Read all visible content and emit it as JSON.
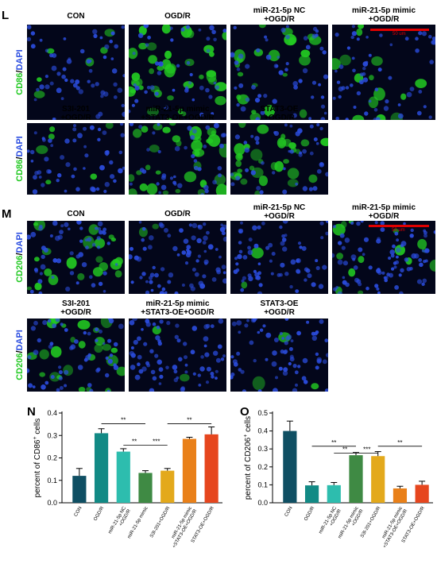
{
  "figure": {
    "panel_L": {
      "letter": "L",
      "row_label_marker": "CD86",
      "row_label_sep": "/",
      "row_label_nucleus": "DAPI",
      "scale_bar_text": "50 um",
      "row1": [
        {
          "line1": "CON",
          "line2": ""
        },
        {
          "line1": "OGD/R",
          "line2": ""
        },
        {
          "line1": "miR-21-5p NC",
          "line2": "+OGD/R"
        },
        {
          "line1": "miR-21-5p mimic",
          "line2": "+OGD/R"
        }
      ],
      "row2": [
        {
          "line1": "S3I-201",
          "line2": "+OGD/R"
        },
        {
          "line1": "miR-21-5p mimic",
          "line2": "+STAT3-OE+OGD/R"
        },
        {
          "line1": "STAT3-OE",
          "line2": "+OGD/R"
        }
      ]
    },
    "panel_M": {
      "letter": "M",
      "row_label_marker": "CD206",
      "row_label_sep": "/",
      "row_label_nucleus": "DAPI",
      "scale_bar_text": "50 um",
      "row1": [
        {
          "line1": "CON",
          "line2": ""
        },
        {
          "line1": "OGD/R",
          "line2": ""
        },
        {
          "line1": "miR-21-5p NC",
          "line2": "+OGD/R"
        },
        {
          "line1": "miR-21-5p mimic",
          "line2": "+OGD/R"
        }
      ],
      "row2": [
        {
          "line1": "S3I-201",
          "line2": "+OGD/R"
        },
        {
          "line1": "miR-21-5p mimic",
          "line2": "+STAT3-OE+OGD/R"
        },
        {
          "line1": "STAT3-OE",
          "line2": "+OGD/R"
        }
      ]
    },
    "panel_N": {
      "letter": "N"
    },
    "panel_O": {
      "letter": "O"
    },
    "colors": {
      "green": "#22c922",
      "blue": "#2b4de0",
      "scale_bar": "#e00000",
      "bars": [
        "#0f4f63",
        "#128a85",
        "#2dbdae",
        "#3f8a44",
        "#e3a91c",
        "#e98019",
        "#e6461e"
      ]
    }
  },
  "chart_data": [
    {
      "type": "bar",
      "title": "",
      "xlabel": "",
      "ylabel_prefix": "percent of CD86",
      "ylabel_sup": "+",
      "ylabel_suffix": " cells",
      "ylim": [
        0,
        0.4
      ],
      "yticks": [
        "0.0",
        "0.1",
        "0.2",
        "0.3",
        "0.4"
      ],
      "categories": [
        "CON",
        "OGD/R",
        "miR-21-5p NC +OGD/R",
        "miR-21-5p mimic +OGD/R",
        "S3I-201+OGD/R",
        "miR-21-5p mimic +STAT3-OE+OGD/R",
        "STAT3-OE+OGD/R"
      ],
      "category_lines": [
        [
          "CON"
        ],
        [
          "OGD/R"
        ],
        [
          "miR-21-5p NC",
          "+OGD/R"
        ],
        [
          "miR-21-5p mimic"
        ],
        [
          "S3I-201+OGD/R"
        ],
        [
          "miR-21-5p mimic",
          "+STAT3-OE+OGD/R"
        ],
        [
          "STAT3-OE+OGD/R"
        ]
      ],
      "values": [
        0.12,
        0.31,
        0.228,
        0.133,
        0.143,
        0.285,
        0.305
      ],
      "errors": [
        0.033,
        0.02,
        0.013,
        0.01,
        0.01,
        0.007,
        0.033
      ],
      "significance": [
        {
          "from": 1,
          "to": 3,
          "y": 0.352,
          "label": "**"
        },
        {
          "from": 2,
          "to": 3,
          "y": 0.257,
          "label": "**"
        },
        {
          "from": 3,
          "to": 4,
          "y": 0.257,
          "label": "***"
        },
        {
          "from": 4,
          "to": 6,
          "y": 0.352,
          "label": "**"
        }
      ]
    },
    {
      "type": "bar",
      "title": "",
      "xlabel": "",
      "ylabel_prefix": "percent of CD206",
      "ylabel_sup": "+",
      "ylabel_suffix": " cells",
      "ylim": [
        0,
        0.5
      ],
      "yticks": [
        "0.0",
        "0.1",
        "0.2",
        "0.3",
        "0.4",
        "0.5"
      ],
      "categories": [
        "CON",
        "OGD/R",
        "miR-21-5p NC +OGD/R",
        "miR-21-5p mimic +OGD/R",
        "S3I-201+OGD/R",
        "miR-21-5p mimic +STAT3-OE+OGD/R",
        "STAT3-OE+OGD/R"
      ],
      "category_lines": [
        [
          "CON"
        ],
        [
          "OGD/R"
        ],
        [
          "miR-21-5p NC",
          "+OGD/R"
        ],
        [
          "miR-21-5p mimic",
          "+OGD/R"
        ],
        [
          "S3I-201+OGD/R"
        ],
        [
          "miR-21-5p mimic",
          "+STAT3-OE+OGD/R"
        ],
        [
          "STAT3-OE+OGD/R"
        ]
      ],
      "values": [
        0.4,
        0.097,
        0.098,
        0.265,
        0.26,
        0.08,
        0.1
      ],
      "errors": [
        0.055,
        0.02,
        0.015,
        0.015,
        0.025,
        0.012,
        0.02
      ],
      "significance": [
        {
          "from": 1,
          "to": 3,
          "y": 0.315,
          "label": "**"
        },
        {
          "from": 2,
          "to": 3,
          "y": 0.277,
          "label": "**"
        },
        {
          "from": 3,
          "to": 4,
          "y": 0.277,
          "label": "***"
        },
        {
          "from": 4,
          "to": 6,
          "y": 0.315,
          "label": "**"
        }
      ]
    }
  ]
}
